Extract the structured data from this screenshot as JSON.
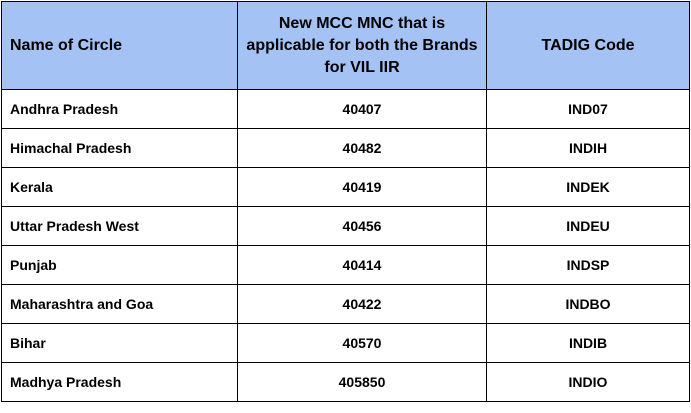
{
  "table": {
    "headers": [
      "Name of Circle",
      "New MCC MNC that is applicable for both the Brands for VIL IIR",
      "TADIG Code"
    ],
    "rows": [
      {
        "circle": "Andhra Pradesh",
        "mcc_mnc": "40407",
        "tadig": "IND07"
      },
      {
        "circle": "Himachal Pradesh",
        "mcc_mnc": "40482",
        "tadig": "INDIH"
      },
      {
        "circle": "Kerala",
        "mcc_mnc": "40419",
        "tadig": "INDEK"
      },
      {
        "circle": "Uttar Pradesh West",
        "mcc_mnc": "40456",
        "tadig": "INDEU"
      },
      {
        "circle": "Punjab",
        "mcc_mnc": "40414",
        "tadig": "INDSP"
      },
      {
        "circle": "Maharashtra and Goa",
        "mcc_mnc": "40422",
        "tadig": "INDBO"
      },
      {
        "circle": "Bihar",
        "mcc_mnc": "40570",
        "tadig": "INDIB"
      },
      {
        "circle": "Madhya Pradesh",
        "mcc_mnc": "405850",
        "tadig": "INDIO"
      }
    ],
    "colors": {
      "header_bg": "#a4c2f4",
      "border": "#000000"
    }
  }
}
